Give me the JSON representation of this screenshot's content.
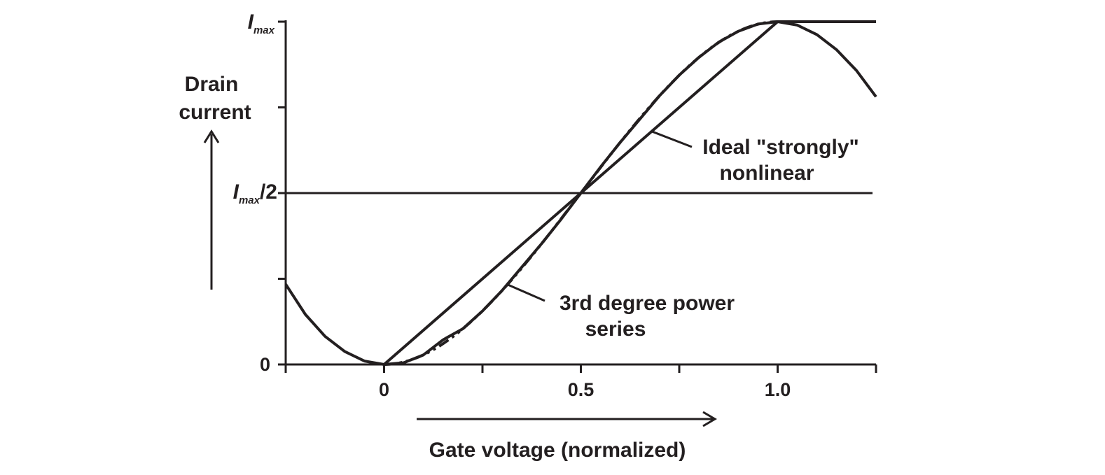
{
  "chart_data": {
    "type": "line",
    "title": "",
    "xlabel": "Gate voltage (normalized)",
    "ylabel_lines": [
      "Drain",
      "current"
    ],
    "xlim": [
      -0.25,
      1.25
    ],
    "ylim": [
      0,
      1
    ],
    "x_ticks": [
      -0.25,
      0,
      0.25,
      0.5,
      0.75,
      1.0,
      1.25
    ],
    "x_tick_labels": [
      {
        "x": 0,
        "text": "0"
      },
      {
        "x": 0.5,
        "text": "0.5"
      },
      {
        "x": 1.0,
        "text": "1.0"
      }
    ],
    "y_ticks": [
      0,
      0.25,
      0.5,
      0.75,
      1.0
    ],
    "y_tick_labels": {
      "zero": "0",
      "half": {
        "main": "I",
        "sub": "max",
        "suffix": "/2"
      },
      "max": {
        "main": "I",
        "sub": "max"
      }
    },
    "reference_line_y": 0.5,
    "grid": false,
    "series": [
      {
        "style": "solid",
        "x": [
          -0.25,
          -0.2,
          -0.15,
          -0.1,
          -0.05,
          0,
          0.05,
          0.1,
          0.15,
          0.2,
          0.25,
          0.3,
          0.35,
          0.4,
          0.45,
          0.5,
          0.55,
          0.6,
          0.65,
          0.7,
          0.75,
          0.8,
          0.85,
          0.9,
          0.95,
          1.0,
          1.05,
          1.1,
          1.15,
          1.2,
          1.25
        ],
        "y": [
          0.234,
          0.146,
          0.082,
          0.038,
          0.01,
          0,
          0.005,
          0.028,
          0.072,
          0.104,
          0.156,
          0.216,
          0.284,
          0.352,
          0.424,
          0.5,
          0.576,
          0.648,
          0.716,
          0.784,
          0.844,
          0.896,
          0.94,
          0.972,
          0.993,
          1.0,
          0.99,
          0.962,
          0.918,
          0.858,
          0.781
        ]
      },
      {
        "style": "solid",
        "x": [
          0,
          1.0,
          1.25
        ],
        "y": [
          0,
          1.0,
          1.0
        ]
      },
      {
        "style": "dash-dot-dot",
        "x": [
          0,
          1.0
        ],
        "y": [
          0,
          1.0
        ],
        "curve": "smoothstep"
      },
      {
        "style": "solid",
        "x": [
          -0.25,
          0,
          1.25
        ],
        "y": [
          0,
          0,
          0
        ]
      }
    ],
    "annotations": [
      {
        "lines": [
          "Ideal \"strongly\"",
          "nonlinear"
        ],
        "point_x": 0.68,
        "point_y": 0.68
      },
      {
        "lines": [
          "3rd degree power",
          "series"
        ],
        "point_x": 0.31,
        "point_y": 0.235
      }
    ]
  }
}
